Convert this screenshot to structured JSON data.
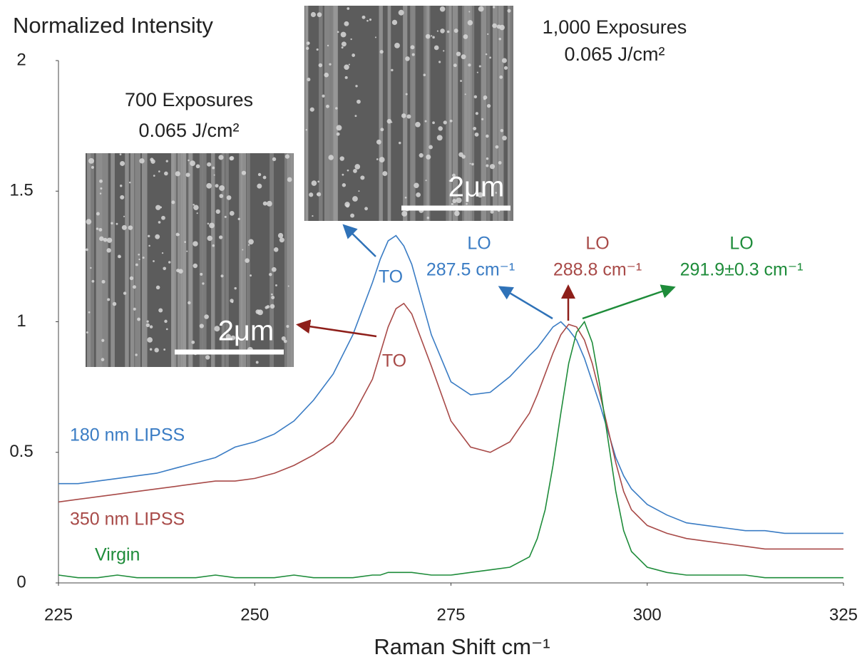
{
  "chart_data": {
    "type": "line",
    "title": "Normalized Intensity",
    "x_label": "Raman Shift cm⁻¹",
    "xlim": [
      225,
      325
    ],
    "xticks": [
      225,
      250,
      275,
      300,
      325
    ],
    "ylim": [
      0,
      2
    ],
    "yticks": [
      0,
      0.5,
      1,
      1.5,
      2
    ],
    "grid": false,
    "x": [
      225,
      227.5,
      230,
      232.5,
      235,
      237.5,
      240,
      242.5,
      245,
      247.5,
      250,
      252.5,
      255,
      257.5,
      260,
      262.5,
      265,
      266,
      267,
      268,
      269,
      270,
      272.5,
      275,
      277.5,
      280,
      282.5,
      285,
      286,
      287,
      288,
      289,
      290,
      291,
      292,
      293,
      294,
      295,
      296,
      297,
      298,
      300,
      302.5,
      305,
      307.5,
      310,
      312.5,
      315,
      317.5,
      320,
      322.5,
      325
    ],
    "series": [
      {
        "name": "180 nm LIPSS",
        "color": "#3a7cc4",
        "values": [
          0.38,
          0.38,
          0.39,
          0.4,
          0.41,
          0.42,
          0.44,
          0.46,
          0.48,
          0.52,
          0.54,
          0.57,
          0.62,
          0.7,
          0.8,
          0.95,
          1.15,
          1.24,
          1.31,
          1.33,
          1.29,
          1.22,
          0.95,
          0.77,
          0.72,
          0.73,
          0.79,
          0.87,
          0.9,
          0.94,
          0.98,
          1.0,
          0.97,
          0.93,
          0.86,
          0.77,
          0.68,
          0.58,
          0.48,
          0.41,
          0.36,
          0.3,
          0.26,
          0.23,
          0.22,
          0.21,
          0.2,
          0.2,
          0.19,
          0.19,
          0.19,
          0.19
        ]
      },
      {
        "name": "350 nm LIPSS",
        "color": "#a84a48",
        "values": [
          0.31,
          0.32,
          0.33,
          0.34,
          0.35,
          0.36,
          0.37,
          0.38,
          0.39,
          0.39,
          0.4,
          0.42,
          0.45,
          0.49,
          0.54,
          0.64,
          0.78,
          0.88,
          0.98,
          1.05,
          1.07,
          1.03,
          0.83,
          0.62,
          0.52,
          0.5,
          0.54,
          0.65,
          0.72,
          0.8,
          0.88,
          0.95,
          0.99,
          0.98,
          0.93,
          0.84,
          0.72,
          0.59,
          0.46,
          0.35,
          0.28,
          0.22,
          0.19,
          0.17,
          0.16,
          0.15,
          0.14,
          0.13,
          0.13,
          0.13,
          0.13,
          0.13
        ]
      },
      {
        "name": "Virgin",
        "color": "#1e8c3a",
        "values": [
          0.03,
          0.02,
          0.02,
          0.03,
          0.02,
          0.02,
          0.02,
          0.02,
          0.03,
          0.02,
          0.02,
          0.02,
          0.03,
          0.02,
          0.02,
          0.02,
          0.03,
          0.03,
          0.04,
          0.04,
          0.04,
          0.04,
          0.03,
          0.03,
          0.04,
          0.05,
          0.06,
          0.1,
          0.17,
          0.28,
          0.45,
          0.65,
          0.84,
          0.96,
          1.0,
          0.92,
          0.75,
          0.55,
          0.35,
          0.2,
          0.12,
          0.06,
          0.04,
          0.03,
          0.03,
          0.03,
          0.03,
          0.02,
          0.02,
          0.02,
          0.02,
          0.02
        ]
      }
    ],
    "annotations": [
      {
        "text": "TO",
        "color": "#3a7cc4"
      },
      {
        "text": "TO",
        "color": "#a84a48"
      },
      {
        "text": "LO",
        "color": "#3a7cc4"
      },
      {
        "text": "287.5 cm⁻¹",
        "color": "#3a7cc4"
      },
      {
        "text": "LO",
        "color": "#a84a48"
      },
      {
        "text": "288.8 cm⁻¹",
        "color": "#a84a48"
      },
      {
        "text": "LO",
        "color": "#1e8c3a"
      },
      {
        "text": "291.9±0.3 cm⁻¹",
        "color": "#1e8c3a"
      }
    ],
    "insets": [
      {
        "caption": [
          "700 Exposures",
          "0.065 J/cm²"
        ],
        "scale_bar": "2μm"
      },
      {
        "caption": [
          "1,000 Exposures",
          "0.065 J/cm²"
        ],
        "scale_bar": "2μm"
      }
    ]
  }
}
